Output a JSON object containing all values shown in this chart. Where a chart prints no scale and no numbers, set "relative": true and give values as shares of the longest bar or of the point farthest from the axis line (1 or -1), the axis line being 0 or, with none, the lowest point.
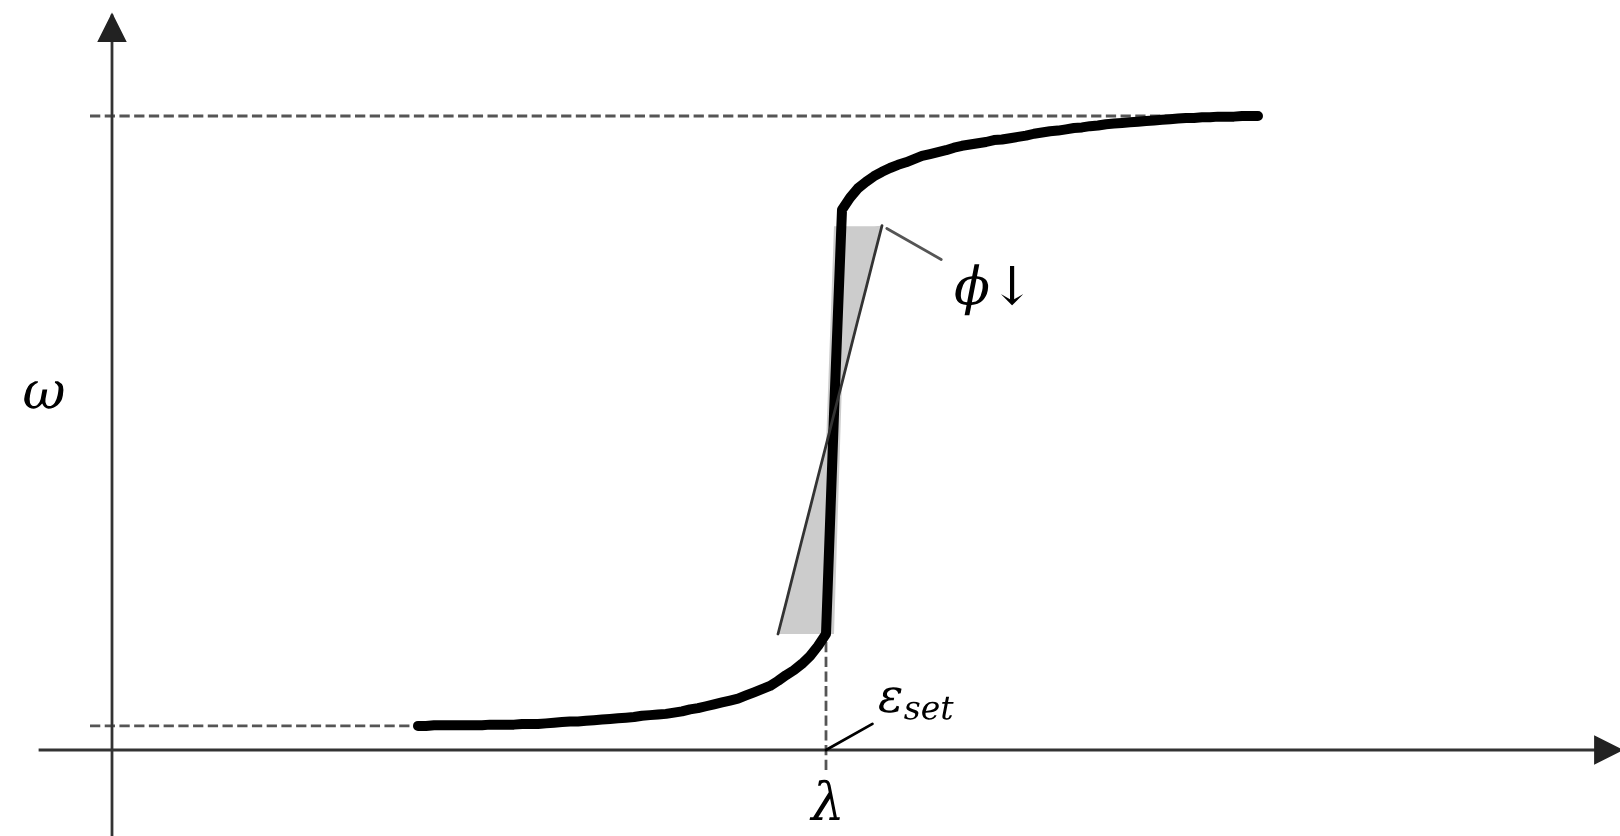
{
  "chart_data": {
    "type": "line",
    "relative": true,
    "xlabel": "λ",
    "ylabel": "ω",
    "line_style": "solid",
    "categories": [
      null,
      null,
      null,
      null,
      null,
      null,
      null,
      null,
      null,
      null,
      null,
      null,
      null,
      null,
      null,
      null,
      null,
      null,
      null,
      null,
      null,
      null,
      null,
      null,
      null,
      null,
      null,
      null,
      null,
      null,
      null,
      null,
      null,
      null,
      null,
      null,
      null,
      null,
      null,
      null,
      null,
      null,
      null,
      null,
      null,
      null,
      null,
      null,
      null,
      null,
      null,
      null,
      null,
      null,
      null,
      null,
      null,
      null,
      null,
      null,
      null,
      null,
      null,
      null,
      null,
      null,
      null,
      null,
      null,
      null,
      null,
      null,
      null,
      null,
      null,
      null,
      null,
      null,
      null,
      null,
      null,
      null,
      null,
      null,
      null,
      null,
      null,
      null,
      null,
      null,
      null,
      null,
      null,
      null,
      null,
      null,
      null,
      null,
      null,
      null,
      null,
      null,
      null,
      null,
      null,
      null,
      null,
      null,
      null,
      null,
      null,
      null,
      null,
      null,
      null,
      null,
      null,
      null,
      null,
      null,
      null,
      null,
      null,
      null,
      null,
      null,
      null,
      null,
      null,
      null,
      null,
      null,
      null,
      null,
      null,
      null,
      null,
      null,
      null,
      null,
      null,
      null,
      null,
      null,
      null,
      null,
      null
    ],
    "series": [
      {
        "color": "#000000",
        "values": [
          null,
          null,
          null,
          null,
          null,
          null,
          null,
          null,
          null,
          null,
          null,
          null,
          null,
          null,
          null,
          null,
          null,
          null,
          null,
          null,
          null,
          null,
          null,
          null,
          null,
          null,
          null,
          null,
          null,
          null,
          null,
          null,
          null,
          null,
          null,
          null,
          null,
          null,
          null,
          null,
          null,
          0.038,
          0.038,
          0.039,
          0.039,
          0.039,
          0.039,
          0.039,
          0.039,
          0.039,
          0.04,
          0.04,
          0.04,
          0.04,
          0.041,
          0.041,
          0.041,
          0.042,
          0.043,
          0.044,
          0.045,
          0.045,
          0.046,
          0.047,
          0.048,
          0.049,
          0.05,
          0.051,
          0.052,
          0.054,
          0.055,
          0.056,
          0.057,
          0.059,
          0.061,
          0.064,
          0.066,
          0.069,
          0.072,
          0.075,
          0.078,
          0.081,
          0.086,
          0.091,
          0.096,
          0.101,
          0.109,
          0.118,
          0.126,
          0.136,
          0.148,
          0.164,
          0.183,
          0.53,
          0.852,
          0.871,
          0.886,
          0.896,
          0.905,
          0.912,
          0.918,
          0.923,
          0.927,
          0.932,
          0.937,
          0.94,
          0.943,
          0.946,
          0.95,
          0.953,
          0.955,
          0.957,
          0.959,
          0.962,
          0.963,
          0.965,
          0.967,
          0.969,
          0.972,
          0.974,
          0.976,
          0.977,
          0.979,
          0.981,
          0.982,
          0.984,
          0.985,
          0.987,
          0.988,
          0.989,
          0.99,
          0.991,
          0.992,
          0.993,
          0.994,
          0.995,
          0.996,
          0.997,
          0.997,
          0.998,
          0.998,
          0.999,
          0.999,
          0.999,
          1.0,
          1.0,
          1.0
        ]
      },
      {
        "color": "#333333",
        "values": [
          null,
          null,
          null,
          null,
          null,
          null,
          null,
          null,
          null,
          null,
          null,
          null,
          null,
          null,
          null,
          null,
          null,
          null,
          null,
          null,
          null,
          null,
          null,
          null,
          null,
          null,
          null,
          null,
          null,
          null,
          null,
          null,
          null,
          null,
          null,
          null,
          null,
          null,
          null,
          null,
          null,
          null,
          null,
          null,
          null,
          null,
          null,
          null,
          null,
          null,
          null,
          null,
          null,
          null,
          null,
          null,
          null,
          null,
          null,
          null,
          null,
          null,
          null,
          null,
          null,
          null,
          null,
          null,
          null,
          null,
          null,
          null,
          null,
          null,
          null,
          null,
          null,
          null,
          null,
          null,
          null,
          null,
          null,
          null,
          null,
          null,
          0.183,
          0.232,
          0.282,
          0.332,
          0.381,
          0.431,
          0.48,
          0.53,
          0.579,
          0.629,
          0.679,
          0.728,
          0.778,
          0.827,
          null,
          null,
          null,
          null,
          null,
          null,
          null,
          null,
          null,
          null,
          null,
          null,
          null,
          null,
          null,
          null,
          null,
          null,
          null,
          null,
          null,
          null,
          null,
          null,
          null,
          null,
          null,
          null,
          null,
          null,
          null,
          null,
          null,
          null,
          null,
          null,
          null,
          null,
          null,
          null,
          null,
          null,
          null,
          null,
          null,
          null,
          null
        ],
        "lower": [
          null,
          null,
          null,
          null,
          null,
          null,
          null,
          null,
          null,
          null,
          null,
          null,
          null,
          null,
          null,
          null,
          null,
          null,
          null,
          null,
          null,
          null,
          null,
          null,
          null,
          null,
          null,
          null,
          null,
          null,
          null,
          null,
          null,
          null,
          null,
          null,
          null,
          null,
          null,
          null,
          null,
          null,
          null,
          null,
          null,
          null,
          null,
          null,
          null,
          null,
          null,
          null,
          null,
          null,
          null,
          null,
          null,
          null,
          null,
          null,
          null,
          null,
          null,
          null,
          null,
          null,
          null,
          null,
          null,
          null,
          null,
          null,
          null,
          null,
          null,
          null,
          null,
          null,
          null,
          null,
          null,
          null,
          null,
          null,
          null,
          null,
          0.183,
          0.183,
          0.183,
          0.183,
          0.183,
          0.183,
          0.183,
          0.183,
          0.579,
          0.629,
          0.679,
          0.728,
          0.778,
          0.827,
          null,
          null,
          null,
          null,
          null,
          null,
          null,
          null,
          null,
          null,
          null,
          null,
          null,
          null,
          null,
          null,
          null,
          null,
          null,
          null,
          null,
          null,
          null,
          null,
          null,
          null,
          null,
          null,
          null,
          null,
          null,
          null,
          null,
          null,
          null,
          null,
          null,
          null,
          null,
          null,
          null,
          null,
          null,
          null,
          null,
          null,
          null
        ],
        "upper": [
          null,
          null,
          null,
          null,
          null,
          null,
          null,
          null,
          null,
          null,
          null,
          null,
          null,
          null,
          null,
          null,
          null,
          null,
          null,
          null,
          null,
          null,
          null,
          null,
          null,
          null,
          null,
          null,
          null,
          null,
          null,
          null,
          null,
          null,
          null,
          null,
          null,
          null,
          null,
          null,
          null,
          null,
          null,
          null,
          null,
          null,
          null,
          null,
          null,
          null,
          null,
          null,
          null,
          null,
          null,
          null,
          null,
          null,
          null,
          null,
          null,
          null,
          null,
          null,
          null,
          null,
          null,
          null,
          null,
          null,
          null,
          null,
          null,
          null,
          null,
          null,
          null,
          null,
          null,
          null,
          null,
          null,
          null,
          null,
          null,
          null,
          0.183,
          0.232,
          0.282,
          0.332,
          0.381,
          0.431,
          0.48,
          0.826,
          0.826,
          0.826,
          0.826,
          0.826,
          0.826,
          0.827,
          null,
          null,
          null,
          null,
          null,
          null,
          null,
          null,
          null,
          null,
          null,
          null,
          null,
          null,
          null,
          null,
          null,
          null,
          null,
          null,
          null,
          null,
          null,
          null,
          null,
          null,
          null,
          null,
          null,
          null,
          null,
          null,
          null,
          null,
          null,
          null,
          null,
          null,
          null,
          null,
          null,
          null,
          null,
          null,
          null,
          null,
          null
        ]
      },
      {
        "color": "#555555",
        "line_style": "dashed",
        "values": [
          1,
          1,
          1,
          1,
          1,
          1,
          1,
          1,
          1,
          1,
          1,
          1,
          1,
          1,
          1,
          1,
          1,
          1,
          1,
          1,
          1,
          1,
          1,
          1,
          1,
          1,
          1,
          1,
          1,
          1,
          1,
          1,
          1,
          1,
          1,
          1,
          1,
          1,
          1,
          1,
          1,
          1,
          1,
          1,
          1,
          1,
          1,
          1,
          1,
          1,
          1,
          1,
          1,
          1,
          1,
          1,
          1,
          1,
          1,
          1,
          1,
          1,
          1,
          1,
          1,
          1,
          1,
          1,
          1,
          1,
          1,
          1,
          1,
          1,
          1,
          1,
          1,
          1,
          1,
          1,
          1,
          1,
          1,
          1,
          1,
          1,
          1,
          1,
          1,
          1,
          1,
          1,
          1,
          1,
          1,
          1,
          1,
          1,
          1,
          1,
          1,
          1,
          1,
          1,
          1,
          1,
          1,
          1,
          1,
          1,
          1,
          1,
          1,
          1,
          1,
          1,
          1,
          1,
          1,
          1,
          1,
          1,
          1,
          1,
          1,
          1,
          1,
          1,
          1,
          1,
          1,
          1,
          1,
          1,
          1,
          1,
          1,
          1,
          1,
          1,
          1,
          1,
          1,
          1,
          1,
          1,
          1
        ]
      },
      {
        "color": "#555555",
        "line_style": "dashed",
        "values": [
          0.038,
          0.038,
          0.038,
          0.038,
          0.038,
          0.038,
          0.038,
          0.038,
          0.038,
          0.038,
          0.038,
          0.038,
          0.038,
          0.038,
          0.038,
          0.038,
          0.038,
          0.038,
          0.038,
          0.038,
          0.038,
          0.038,
          0.038,
          0.038,
          0.038,
          0.038,
          0.038,
          0.038,
          0.038,
          0.038,
          0.038,
          0.038,
          0.038,
          0.038,
          0.038,
          0.038,
          0.038,
          0.038,
          0.038,
          0.038,
          0.038,
          0.038,
          null,
          null,
          null,
          null,
          null,
          null,
          null,
          null,
          null,
          null,
          null,
          null,
          null,
          null,
          null,
          null,
          null,
          null,
          null,
          null,
          null,
          null,
          null,
          null,
          null,
          null,
          null,
          null,
          null,
          null,
          null,
          null,
          null,
          null,
          null,
          null,
          null,
          null,
          null,
          null,
          null,
          null,
          null,
          null,
          null,
          null,
          null,
          null,
          null,
          null,
          null,
          null,
          null,
          null,
          null,
          null,
          null,
          null,
          null,
          null,
          null,
          null,
          null,
          null,
          null,
          null,
          null,
          null,
          null,
          null,
          null,
          null,
          null,
          null,
          null,
          null,
          null,
          null,
          null,
          null,
          null,
          null,
          null,
          null,
          null,
          null,
          null,
          null,
          null,
          null,
          null,
          null,
          null,
          null,
          null,
          null,
          null,
          null,
          null,
          null,
          null,
          null,
          null,
          null,
          null
        ]
      }
    ],
    "annotations": [
      "ϕ↓",
      "ε$_{set}$"
    ]
  }
}
